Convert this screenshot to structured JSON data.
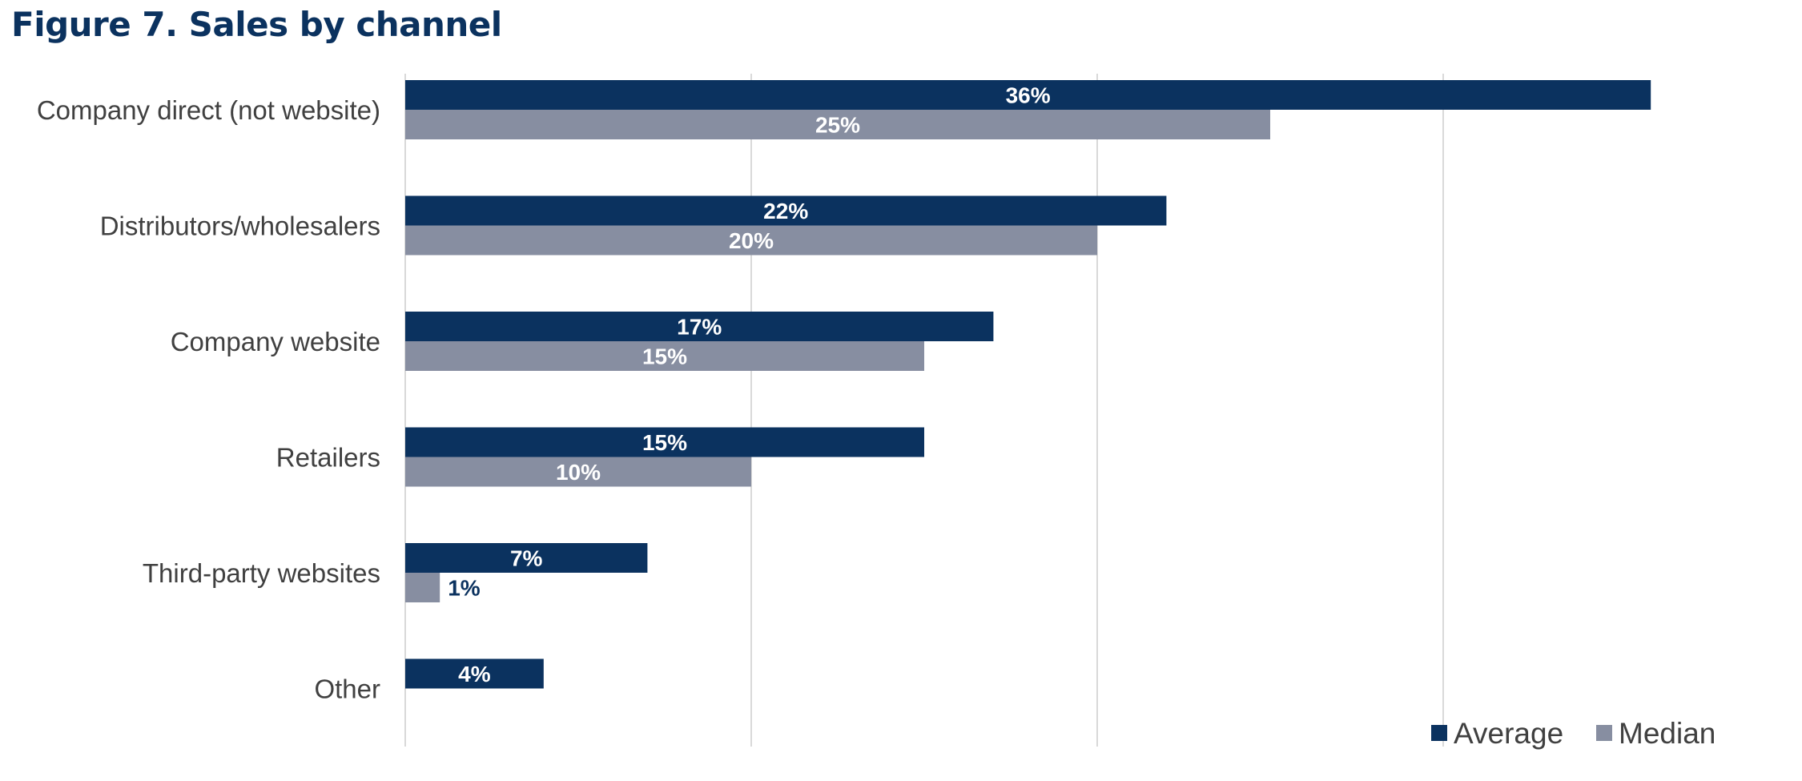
{
  "title": "Figure 7. Sales by channel",
  "colors": {
    "title": "#0b325f",
    "average": "#0b325f",
    "median": "#878ea1",
    "grid": "#d9d9d9",
    "label_inside": "#ffffff",
    "label_outside": "#0b325f"
  },
  "chart_data": {
    "type": "bar",
    "orientation": "horizontal",
    "categories": [
      "Company direct (not website)",
      "Distributors/wholesalers",
      "Company website",
      "Retailers",
      "Third-party websites",
      "Other"
    ],
    "series": [
      {
        "name": "Average",
        "values": [
          36,
          22,
          17,
          15,
          7,
          4
        ],
        "labels": [
          "36%",
          "22%",
          "17%",
          "15%",
          "7%",
          "4%"
        ]
      },
      {
        "name": "Median",
        "values": [
          25,
          20,
          15,
          10,
          1,
          null
        ],
        "labels": [
          "25%",
          "20%",
          "15%",
          "10%",
          "1%",
          ""
        ]
      }
    ],
    "xlim": [
      0,
      40
    ],
    "grid": true,
    "legend": "bottom-right",
    "legend_entries": [
      "Average",
      "Median"
    ]
  }
}
